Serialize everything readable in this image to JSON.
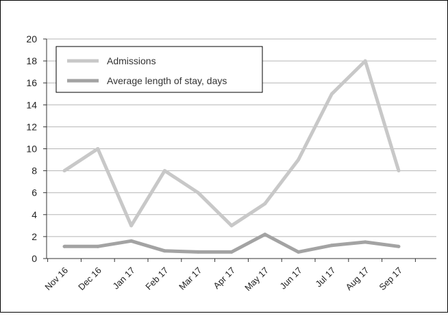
{
  "chart_data": {
    "type": "line",
    "title": "",
    "xlabel": "",
    "ylabel": "",
    "categories": [
      "Nov 16",
      "Dec 16",
      "Jan 17",
      "Feb 17",
      "Mar 17",
      "Apr 17",
      "May 17",
      "Jun 17",
      "Jul 17",
      "Aug 17",
      "Sep 17"
    ],
    "ylim": [
      0,
      20
    ],
    "yticks": [
      0,
      2,
      4,
      6,
      8,
      10,
      12,
      14,
      16,
      18,
      20
    ],
    "grid": true,
    "legend_position": "top-left",
    "series": [
      {
        "name": "Admissions",
        "color": "#c8c8c8",
        "values": [
          8,
          10,
          3,
          8,
          6,
          3,
          5,
          9,
          15,
          18,
          8
        ]
      },
      {
        "name": "Average length of stay, days",
        "color": "#a3a3a3",
        "values": [
          1.1,
          1.1,
          1.6,
          0.7,
          0.6,
          0.6,
          2.2,
          0.6,
          1.2,
          1.5,
          1.1
        ]
      }
    ]
  }
}
